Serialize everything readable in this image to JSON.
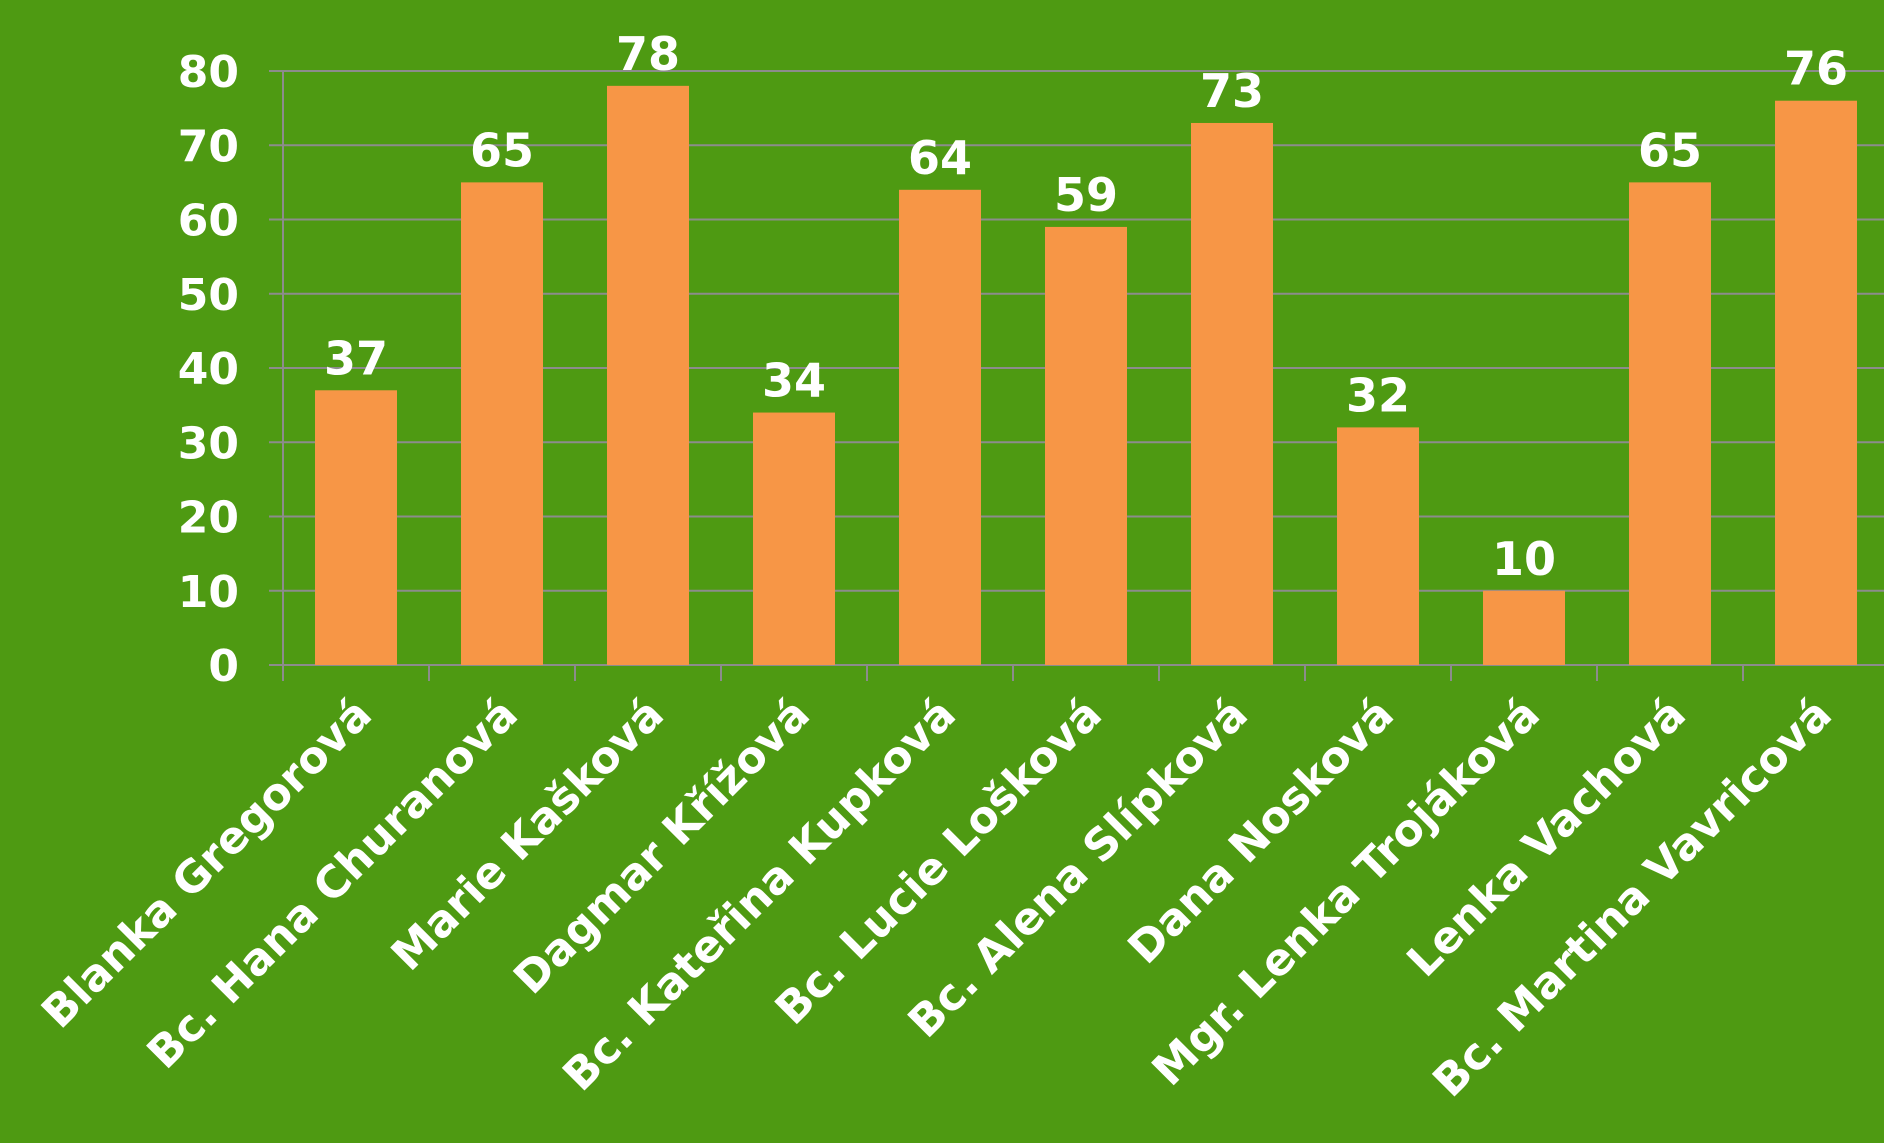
{
  "chart_data": {
    "type": "bar",
    "categories": [
      "Blanka Gregorová",
      "Bc. Hana Churanová",
      "Marie Kašková",
      "Dagmar Křížová",
      "Bc. Kateřina Kupková",
      "Bc. Lucie Lošková",
      "Bc. Alena Slípková",
      "Dana Nosková",
      "Mgr. Lenka Trojáková",
      "Lenka Vachová",
      "Bc. Martina Vavricová"
    ],
    "values": [
      37,
      65,
      78,
      34,
      64,
      59,
      73,
      32,
      10,
      65,
      76
    ],
    "title": "",
    "xlabel": "",
    "ylabel": "",
    "ylim": [
      0,
      80
    ],
    "yticks": [
      "0",
      "10",
      "20",
      "30",
      "40",
      "50",
      "60",
      "70",
      "80"
    ],
    "grid": true,
    "legend": "none",
    "data_labels": true,
    "colors": {
      "background": "#4e9a12",
      "bar": "#f79646",
      "gridline": "#8c8c8c",
      "text": "#ffffff"
    }
  }
}
